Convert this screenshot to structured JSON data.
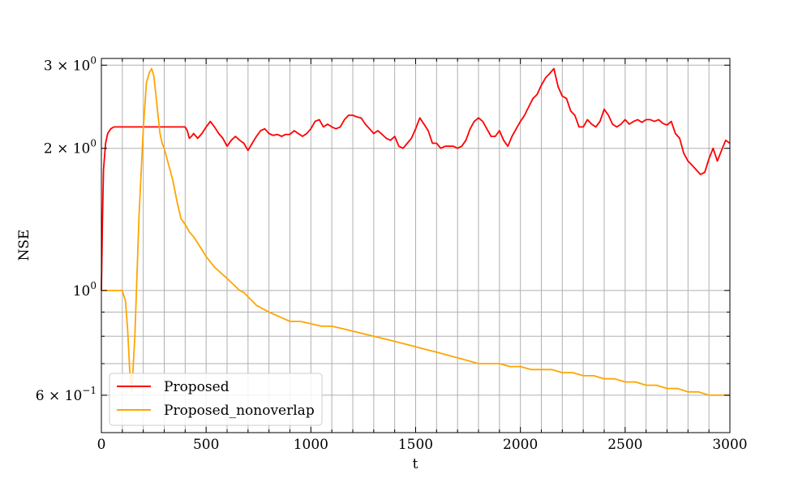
{
  "chart_data": {
    "type": "line",
    "title": "",
    "xlabel": "t",
    "ylabel": "NSE",
    "xlim": [
      0,
      3000
    ],
    "ylim": [
      0.5,
      3.1
    ],
    "yscale": "log",
    "grid": true,
    "legend_placement": "lower-left",
    "x_ticks": [
      0,
      500,
      1000,
      1500,
      2000,
      2500,
      3000
    ],
    "x_tick_labels": [
      "0",
      "500",
      "1000",
      "1500",
      "2000",
      "2500",
      "3000"
    ],
    "x_grid_lines": [
      0,
      100,
      200,
      300,
      400,
      500,
      600,
      700,
      800,
      900,
      1000,
      1100,
      1200,
      1300,
      1400,
      1500,
      1600,
      1700,
      1800,
      1900,
      2000,
      2100,
      2200,
      2300,
      2400,
      2500,
      2600,
      2700,
      2800,
      2900,
      3000
    ],
    "y_major_ticks": [
      {
        "value": 0.6,
        "mantissa": "6",
        "exponent": "−1"
      },
      {
        "value": 1.0,
        "mantissa": "",
        "exponent": "0"
      },
      {
        "value": 2.0,
        "mantissa": "2",
        "exponent": "0"
      },
      {
        "value": 3.0,
        "mantissa": "3",
        "exponent": "0"
      }
    ],
    "y_grid_lines": [
      0.5,
      0.6,
      0.7,
      0.8,
      0.9,
      1.0,
      2.0,
      3.0
    ],
    "y_minor_ticks": [
      0.5,
      0.7,
      0.8,
      0.9
    ],
    "series": [
      {
        "name": "Proposed",
        "color": "#ff0000",
        "x": [
          0,
          5,
          10,
          20,
          30,
          45,
          60,
          80,
          100,
          150,
          200,
          250,
          300,
          350,
          400,
          410,
          420,
          430,
          440,
          460,
          480,
          500,
          520,
          540,
          560,
          580,
          600,
          620,
          640,
          660,
          680,
          700,
          720,
          740,
          760,
          780,
          800,
          820,
          840,
          860,
          880,
          900,
          920,
          940,
          960,
          980,
          1000,
          1020,
          1040,
          1060,
          1080,
          1100,
          1120,
          1140,
          1160,
          1180,
          1200,
          1220,
          1240,
          1260,
          1280,
          1300,
          1320,
          1340,
          1360,
          1380,
          1400,
          1420,
          1440,
          1460,
          1480,
          1500,
          1520,
          1540,
          1560,
          1580,
          1600,
          1620,
          1640,
          1660,
          1680,
          1700,
          1720,
          1740,
          1760,
          1780,
          1800,
          1820,
          1840,
          1860,
          1880,
          1900,
          1920,
          1940,
          1960,
          1980,
          2000,
          2020,
          2040,
          2060,
          2080,
          2100,
          2120,
          2140,
          2160,
          2180,
          2200,
          2220,
          2240,
          2260,
          2280,
          2300,
          2320,
          2340,
          2360,
          2380,
          2400,
          2420,
          2440,
          2460,
          2480,
          2500,
          2520,
          2540,
          2560,
          2580,
          2600,
          2620,
          2640,
          2660,
          2680,
          2700,
          2720,
          2740,
          2760,
          2780,
          2800,
          2820,
          2840,
          2860,
          2880,
          2900,
          2920,
          2940,
          2960,
          2980,
          3000
        ],
        "values": [
          1.0,
          1.4,
          1.8,
          2.05,
          2.15,
          2.2,
          2.22,
          2.22,
          2.22,
          2.22,
          2.22,
          2.22,
          2.22,
          2.22,
          2.22,
          2.18,
          2.1,
          2.12,
          2.15,
          2.1,
          2.15,
          2.22,
          2.28,
          2.22,
          2.15,
          2.1,
          2.02,
          2.08,
          2.12,
          2.08,
          2.05,
          1.98,
          2.05,
          2.12,
          2.18,
          2.2,
          2.15,
          2.13,
          2.14,
          2.12,
          2.14,
          2.14,
          2.18,
          2.15,
          2.12,
          2.15,
          2.2,
          2.28,
          2.3,
          2.22,
          2.25,
          2.22,
          2.2,
          2.22,
          2.3,
          2.35,
          2.35,
          2.33,
          2.32,
          2.25,
          2.2,
          2.15,
          2.18,
          2.14,
          2.1,
          2.08,
          2.12,
          2.02,
          2.0,
          2.05,
          2.1,
          2.2,
          2.32,
          2.25,
          2.18,
          2.05,
          2.05,
          2.0,
          2.02,
          2.02,
          2.02,
          2.0,
          2.02,
          2.08,
          2.2,
          2.28,
          2.32,
          2.28,
          2.2,
          2.12,
          2.12,
          2.18,
          2.08,
          2.02,
          2.12,
          2.2,
          2.28,
          2.35,
          2.45,
          2.55,
          2.6,
          2.72,
          2.82,
          2.88,
          2.95,
          2.7,
          2.58,
          2.55,
          2.4,
          2.35,
          2.22,
          2.22,
          2.3,
          2.25,
          2.22,
          2.28,
          2.42,
          2.35,
          2.25,
          2.22,
          2.25,
          2.3,
          2.25,
          2.28,
          2.3,
          2.27,
          2.3,
          2.3,
          2.28,
          2.3,
          2.26,
          2.24,
          2.28,
          2.15,
          2.1,
          1.95,
          1.88,
          1.84,
          1.8,
          1.76,
          1.78,
          1.9,
          2.0,
          1.88,
          1.98,
          2.08,
          2.05
        ],
        "dash": "solid"
      },
      {
        "name": "Proposed_nonoverlap",
        "color": "#ffa500",
        "x": [
          0,
          50,
          100,
          115,
          125,
          135,
          145,
          160,
          180,
          200,
          215,
          230,
          240,
          250,
          260,
          270,
          280,
          290,
          300,
          320,
          340,
          360,
          380,
          400,
          420,
          440,
          460,
          480,
          500,
          520,
          540,
          560,
          580,
          600,
          620,
          640,
          660,
          680,
          700,
          720,
          740,
          760,
          780,
          800,
          850,
          900,
          950,
          1000,
          1050,
          1100,
          1150,
          1200,
          1250,
          1300,
          1350,
          1400,
          1450,
          1500,
          1550,
          1600,
          1650,
          1700,
          1750,
          1800,
          1850,
          1900,
          1950,
          2000,
          2050,
          2100,
          2150,
          2200,
          2250,
          2300,
          2350,
          2400,
          2450,
          2500,
          2550,
          2600,
          2650,
          2700,
          2750,
          2800,
          2850,
          2900,
          2950,
          3000
        ],
        "values": [
          1.0,
          1.0,
          1.0,
          0.95,
          0.83,
          0.68,
          0.61,
          0.8,
          1.45,
          2.2,
          2.75,
          2.9,
          2.95,
          2.85,
          2.6,
          2.35,
          2.15,
          2.05,
          2.0,
          1.85,
          1.72,
          1.55,
          1.42,
          1.38,
          1.33,
          1.3,
          1.26,
          1.22,
          1.18,
          1.15,
          1.12,
          1.1,
          1.08,
          1.06,
          1.04,
          1.02,
          1.0,
          0.99,
          0.97,
          0.95,
          0.93,
          0.92,
          0.91,
          0.9,
          0.88,
          0.86,
          0.86,
          0.85,
          0.84,
          0.84,
          0.83,
          0.82,
          0.81,
          0.8,
          0.79,
          0.78,
          0.77,
          0.76,
          0.75,
          0.74,
          0.73,
          0.72,
          0.71,
          0.7,
          0.7,
          0.7,
          0.69,
          0.69,
          0.68,
          0.68,
          0.68,
          0.67,
          0.67,
          0.66,
          0.66,
          0.65,
          0.65,
          0.64,
          0.64,
          0.63,
          0.63,
          0.62,
          0.62,
          0.61,
          0.61,
          0.6,
          0.6,
          0.6
        ],
        "dash": "solid"
      }
    ]
  }
}
